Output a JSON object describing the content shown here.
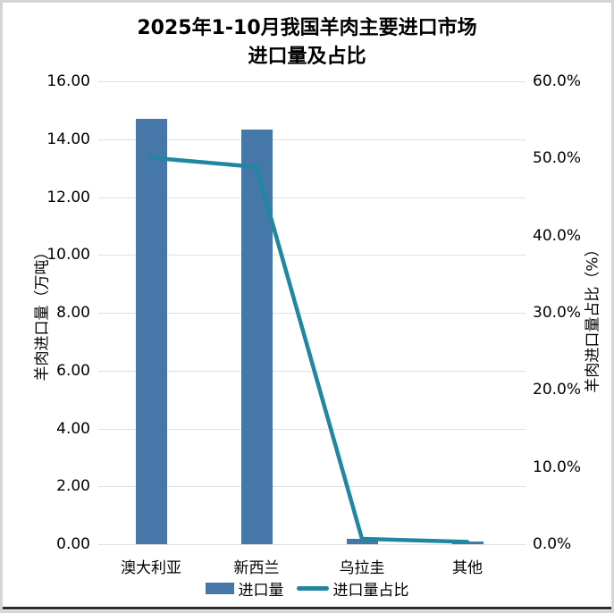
{
  "title": {
    "line1": "2025年1-10月我国羊肉主要进口市场",
    "line2": "进口量及占比"
  },
  "chart_data": {
    "type": "combo",
    "title": "2025年1-10月我国羊肉主要进口市场 进口量及占比",
    "categories": [
      "澳大利亚",
      "新西兰",
      "乌拉圭",
      "其他"
    ],
    "series": [
      {
        "name": "进口量",
        "type": "bar",
        "axis": "left",
        "unit": "万吨",
        "values": [
          14.7,
          14.33,
          0.19,
          0.1
        ],
        "color": "#4577A8"
      },
      {
        "name": "进口量占比",
        "type": "line",
        "axis": "right",
        "unit": "%",
        "values": [
          50.1,
          48.9,
          0.7,
          0.3
        ],
        "color": "#1F87A0"
      }
    ],
    "left_axis": {
      "label": "羊肉进口量（万吨）",
      "min": 0,
      "max": 16,
      "step": 2,
      "ticks": [
        "16.00",
        "14.00",
        "12.00",
        "10.00",
        "8.00",
        "6.00",
        "4.00",
        "2.00",
        "0.00"
      ]
    },
    "right_axis": {
      "label": "羊肉进口量占比（%）",
      "min": 0,
      "max": 60,
      "step": 10,
      "ticks": [
        "60.0%",
        "50.0%",
        "40.0%",
        "30.0%",
        "20.0%",
        "10.0%",
        "0.0%"
      ]
    },
    "legend": {
      "position": "bottom",
      "entries": [
        "进口量",
        "进口量占比"
      ]
    },
    "grid": "horizontal",
    "colors": {
      "bar": "#4577A8",
      "line": "#1F87A0",
      "gridline": "#E0E0E0",
      "background": "#FFFFFF",
      "frame_border": "#D5D5D5",
      "bottom_rule": "#2A2A2A"
    }
  }
}
